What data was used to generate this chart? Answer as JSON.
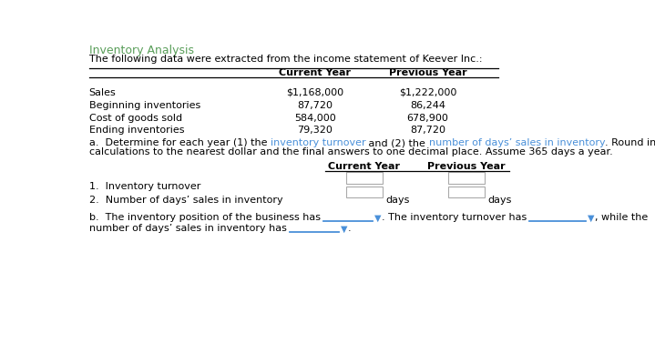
{
  "title": "Inventory Analysis",
  "subtitle": "The following data were extracted from the income statement of Keever Inc.:",
  "table1_rows": [
    [
      "Sales",
      "$1,168,000",
      "$1,222,000"
    ],
    [
      "Beginning inventories",
      "87,720",
      "86,244"
    ],
    [
      "Cost of goods sold",
      "584,000",
      "678,900"
    ],
    [
      "Ending inventories",
      "79,320",
      "87,720"
    ]
  ],
  "section_a_parts": [
    [
      "a.  Determine for each year (1) the ",
      "#000000"
    ],
    [
      "inventory turnover",
      "#4a90d9"
    ],
    [
      " and (2) the ",
      "#000000"
    ],
    [
      "number of days’ sales in inventory",
      "#4a90d9"
    ],
    [
      ". Round interim",
      "#000000"
    ]
  ],
  "section_a_line2": "calculations to the nearest dollar and the final answers to one decimal place. Assume 365 days a year.",
  "table2_row1": "1.  Inventory turnover",
  "table2_row2": "2.  Number of days’ sales in inventory",
  "sec_b_text1": "b.  The inventory position of the business has",
  "sec_b_text2": ". The inventory turnover has",
  "sec_b_text3": ", while the",
  "sec_b_line2_text": "number of days’ sales in inventory has",
  "title_color": "#5a9e5a",
  "text_color": "#000000",
  "blue_color": "#4a90d9",
  "bg_color": "#ffffff",
  "bold_header_col1": "Current Year",
  "bold_header_col2": "Previous Year",
  "fs": 8.0,
  "fs_title": 9.0
}
